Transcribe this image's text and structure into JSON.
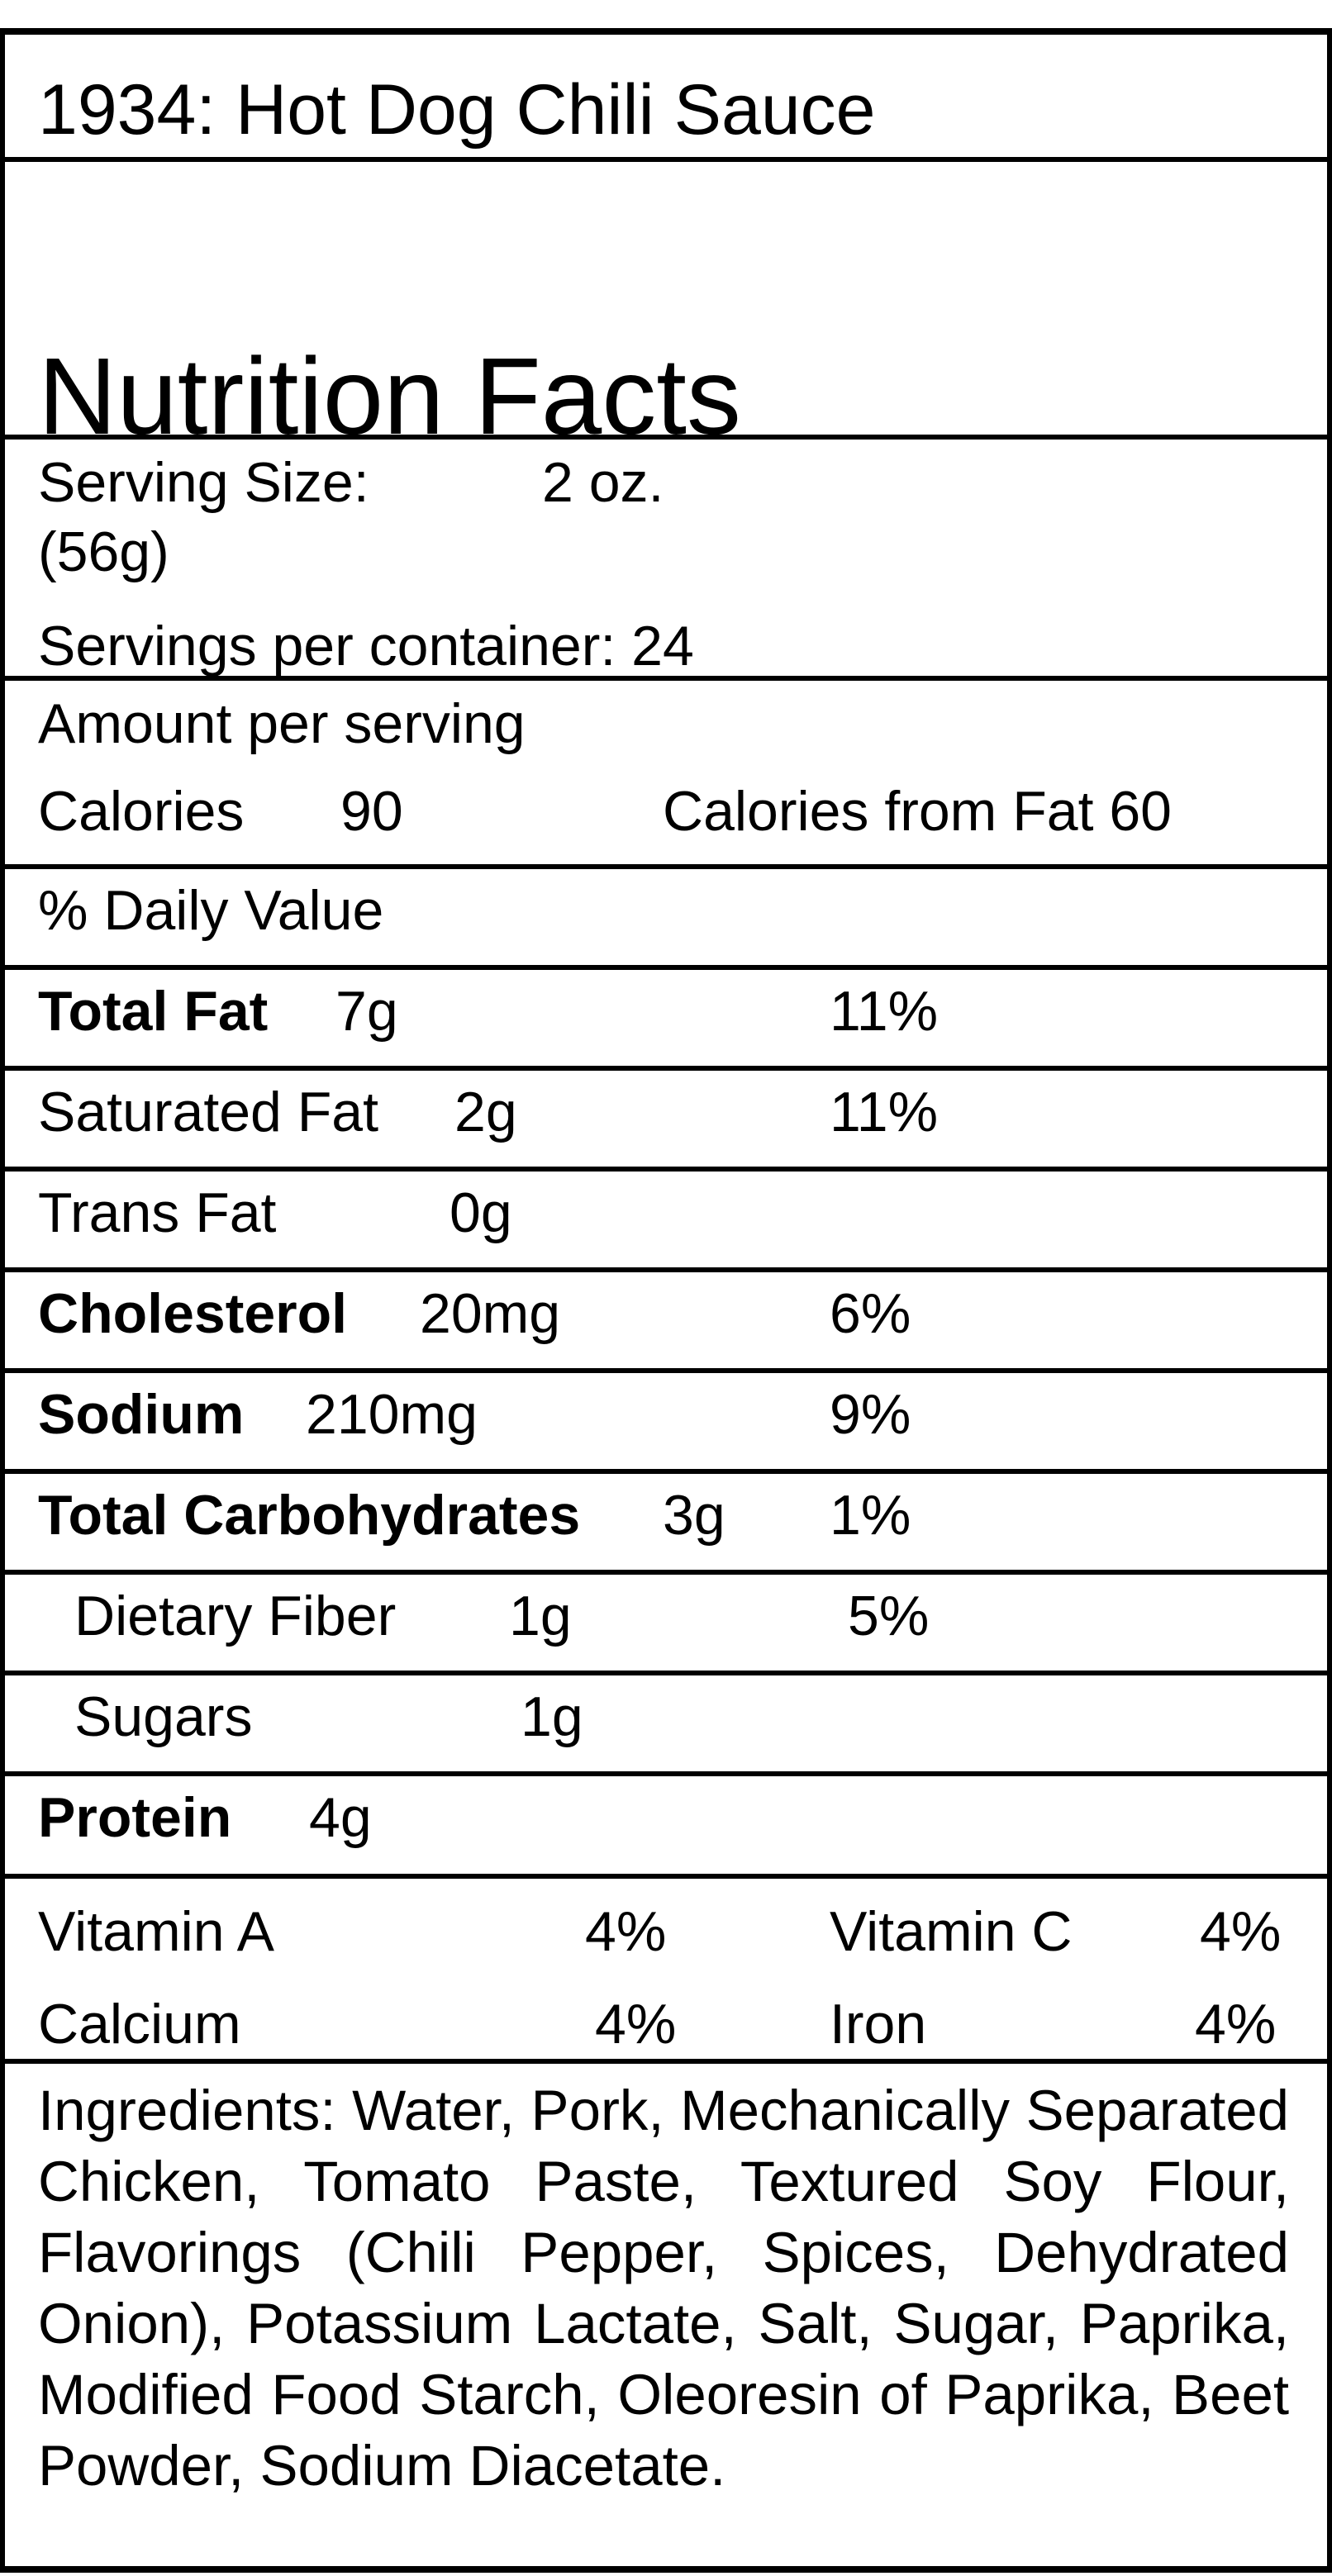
{
  "product_title": "1934: Hot Dog Chili Sauce",
  "heading": "Nutrition Facts",
  "serving_size_label": "Serving   Size:",
  "serving_size_value": "2   oz.",
  "serving_size_grams": "(56g)",
  "servings_per_container": "Servings per container: 24",
  "amount_per_serving": "Amount per serving",
  "calories_label": "Calories",
  "calories_value": "90",
  "calories_from_fat": "Calories from Fat 60",
  "daily_value_header": "% Daily Value",
  "nutrients": [
    {
      "name": "Total Fat",
      "amount": "7g",
      "dv": "11%"
    },
    {
      "name": "Saturated Fat",
      "amount": "2g",
      "dv": "11%"
    },
    {
      "name": "Trans Fat",
      "amount": "0g",
      "dv": ""
    },
    {
      "name": "Cholesterol",
      "amount": "20mg",
      "dv": "6%"
    },
    {
      "name": "Sodium",
      "amount": "210mg",
      "dv": "9%"
    },
    {
      "name": "Total Carbohydrates",
      "amount": "3g",
      "dv": "1%"
    },
    {
      "name": "Dietary Fiber",
      "amount": "1g",
      "dv": "5%"
    },
    {
      "name": "Sugars",
      "amount": "1g",
      "dv": ""
    },
    {
      "name": "Protein",
      "amount": "4g",
      "dv": ""
    }
  ],
  "vitamins": [
    {
      "name": "Vitamin A",
      "value": "4%"
    },
    {
      "name": "Vitamin C",
      "value": "4%"
    },
    {
      "name": "Calcium",
      "value": "4%"
    },
    {
      "name": "Iron",
      "value": "4%"
    }
  ],
  "ingredients": "Ingredients: Water, Pork, Mechanically Separated Chicken, Tomato Paste, Textured Soy Flour, Flavorings (Chili Pepper, Spices, Dehydrated Onion), Potassium Lactate, Salt, Sugar, Paprika, Modified Food Starch, Oleoresin of Paprika, Beet Powder, Sodium Diacetate."
}
